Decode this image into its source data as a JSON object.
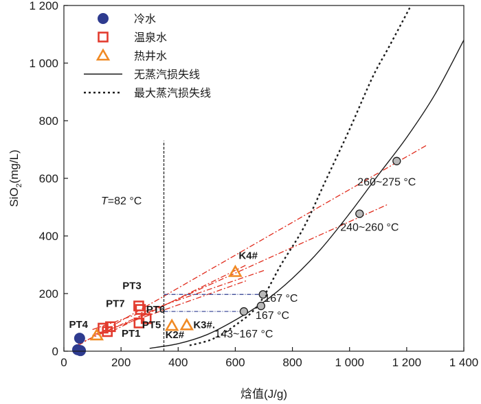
{
  "chart_data": {
    "type": "scatter",
    "xlabel": "焓值(J/g)",
    "ylabel_main": "SiO",
    "ylabel_sub": "2",
    "ylabel_unit": "(mg/L)",
    "xlim": [
      0,
      1400
    ],
    "ylim": [
      0,
      1200
    ],
    "x_ticks": [
      0,
      200,
      400,
      600,
      800,
      1000,
      1200,
      1400
    ],
    "x_tick_labels": [
      "0",
      "200",
      "400",
      "600",
      "800",
      "1 000",
      "1 200",
      "1 400"
    ],
    "y_ticks": [
      0,
      200,
      400,
      600,
      800,
      1000,
      1200
    ],
    "y_tick_labels": [
      "0",
      "200",
      "400",
      "600",
      "800",
      "1 000",
      "1 200"
    ],
    "legend": {
      "placement": "top-left",
      "entries": [
        {
          "label": "冷水",
          "kind": "circle",
          "color": "#2e3b8f"
        },
        {
          "label": "温泉水",
          "kind": "square",
          "color": "#e23b2e"
        },
        {
          "label": "热井水",
          "kind": "triangle",
          "color": "#f08a24"
        },
        {
          "label": "无蒸汽损失线",
          "kind": "solid"
        },
        {
          "label": "最大蒸汽损失线",
          "kind": "dotted"
        }
      ]
    },
    "vertical_line": {
      "x": 350,
      "label_italic": "T",
      "label_rest": "=82 °C"
    },
    "series": [
      {
        "name": "冷水",
        "marker": "circle",
        "color": "#2e3b8f",
        "points": [
          [
            55,
            45
          ],
          [
            48,
            5
          ],
          [
            58,
            2
          ]
        ]
      },
      {
        "name": "温泉水",
        "marker": "square",
        "color": "#e23b2e",
        "points": [
          [
            262,
            157
          ],
          [
            268,
            145
          ],
          [
            263,
            98
          ],
          [
            288,
            113
          ],
          [
            137,
            80
          ],
          [
            152,
            68
          ],
          [
            163,
            85
          ]
        ]
      },
      {
        "name": "热井水",
        "marker": "triangle",
        "color": "#f08a24",
        "points": [
          [
            600,
            275
          ],
          [
            115,
            55
          ],
          [
            378,
            88
          ],
          [
            430,
            90
          ]
        ]
      }
    ],
    "point_labels": [
      {
        "text": "PT3",
        "x": 205,
        "y": 215
      },
      {
        "text": "PT7",
        "x": 147,
        "y": 154
      },
      {
        "text": "PT4",
        "x": 18,
        "y": 81
      },
      {
        "text": "PT1",
        "x": 202,
        "y": 50
      },
      {
        "text": "PT5",
        "x": 274,
        "y": 80
      },
      {
        "text": "PT6",
        "x": 288,
        "y": 133
      },
      {
        "text": "K2#",
        "x": 355,
        "y": 45
      },
      {
        "text": "K3#.",
        "x": 453,
        "y": 80
      },
      {
        "text": "K4#",
        "x": 612,
        "y": 320
      }
    ],
    "no_steam_loss_curve": [
      [
        300,
        10
      ],
      [
        400,
        26
      ],
      [
        500,
        57
      ],
      [
        600,
        108
      ],
      [
        700,
        171
      ],
      [
        800,
        253
      ],
      [
        900,
        355
      ],
      [
        1000,
        478
      ],
      [
        1100,
        611
      ],
      [
        1200,
        742
      ],
      [
        1300,
        893
      ],
      [
        1400,
        1080
      ]
    ],
    "max_steam_loss_curve": [
      [
        440,
        20
      ],
      [
        520,
        42
      ],
      [
        600,
        90
      ],
      [
        680,
        160
      ],
      [
        760,
        300
      ],
      [
        840,
        430
      ],
      [
        920,
        600
      ],
      [
        1000,
        770
      ],
      [
        1080,
        950
      ],
      [
        1140,
        1060
      ],
      [
        1215,
        1200
      ]
    ],
    "mixing_lines": [
      [
        [
          50,
          20
        ],
        [
          1270,
          715
        ]
      ],
      [
        [
          50,
          25
        ],
        [
          1135,
          510
        ]
      ],
      [
        [
          100,
          75
        ],
        [
          700,
          280
        ]
      ],
      [
        [
          170,
          70
        ],
        [
          640,
          300
        ]
      ],
      [
        [
          100,
          55
        ],
        [
          640,
          245
        ]
      ]
    ],
    "connector_lines": [
      [
        [
          350,
          197
        ],
        [
          697,
          197
        ]
      ],
      [
        [
          350,
          138
        ],
        [
          628,
          138
        ]
      ]
    ],
    "estimated_points": [
      {
        "x": 1165,
        "y": 660,
        "label": "260~275 °C",
        "label_x": 1130,
        "label_y": 575
      },
      {
        "x": 1035,
        "y": 477,
        "label": "240~260 °C",
        "label_x": 1070,
        "label_y": 418
      },
      {
        "x": 697,
        "y": 197,
        "label": "167 °C",
        "label_x": 760,
        "label_y": 172
      },
      {
        "x": 690,
        "y": 157,
        "label": "167 °C",
        "label_x": 730,
        "label_y": 112
      },
      {
        "x": 630,
        "y": 138,
        "label": "143~167 °C",
        "label_x": 630,
        "label_y": 48
      }
    ]
  }
}
